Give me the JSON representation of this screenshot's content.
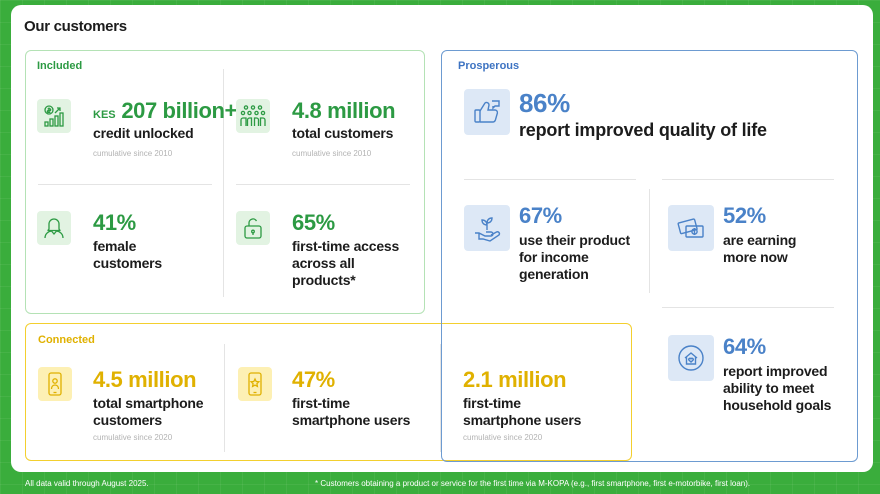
{
  "title": "Our customers",
  "included": {
    "label": "Included",
    "items": [
      {
        "prefix": "KES",
        "value": "207 billion+",
        "desc": "credit unlocked",
        "note": "cumulative since 2010",
        "icon": "growth-chart-icon"
      },
      {
        "value": "4.8 million",
        "desc": "total customers",
        "note": "cumulative since 2010",
        "icon": "people-group-icon"
      },
      {
        "value": "41%",
        "desc_lines": [
          "female",
          "customers"
        ],
        "icon": "female-person-icon"
      },
      {
        "value": "65%",
        "desc_lines": [
          "first-time access",
          "across all",
          "products*"
        ],
        "icon": "open-lock-icon"
      }
    ]
  },
  "connected": {
    "label": "Connected",
    "items": [
      {
        "value": "4.5 million",
        "desc_lines": [
          "total smartphone",
          "customers"
        ],
        "note": "cumulative since 2020",
        "icon": "smartphone-person-icon"
      },
      {
        "value": "47%",
        "desc_lines": [
          "first-time",
          "smartphone users"
        ],
        "icon": "smartphone-star-icon"
      },
      {
        "value": "2.1 million",
        "desc_lines": [
          "first-time",
          "smartphone users"
        ],
        "note": "cumulative since 2020"
      }
    ]
  },
  "prosperous": {
    "label": "Prosperous",
    "items": [
      {
        "value": "86%",
        "desc": "report improved quality of life",
        "icon": "thumbs-up-icon"
      },
      {
        "value": "67%",
        "desc_lines": [
          "use their product",
          "for income",
          "generation"
        ],
        "icon": "plant-in-hand-icon"
      },
      {
        "value": "52%",
        "desc_lines": [
          "are earning",
          "more now"
        ],
        "icon": "money-icon"
      },
      {
        "value": "64%",
        "desc_lines": [
          "report improved",
          "ability to meet",
          "household goals"
        ],
        "icon": "house-heart-icon"
      }
    ]
  },
  "footer": {
    "left": "All data valid through August 2025.",
    "right": "* Customers obtaining a product or service for the first time via M-KOPA (e.g., first smartphone, first e-motorbike, first loan)."
  },
  "colors": {
    "green": "#2c9a43",
    "yellow": "#e0b100",
    "blue": "#4a82c8",
    "background": "#3aad3c"
  }
}
